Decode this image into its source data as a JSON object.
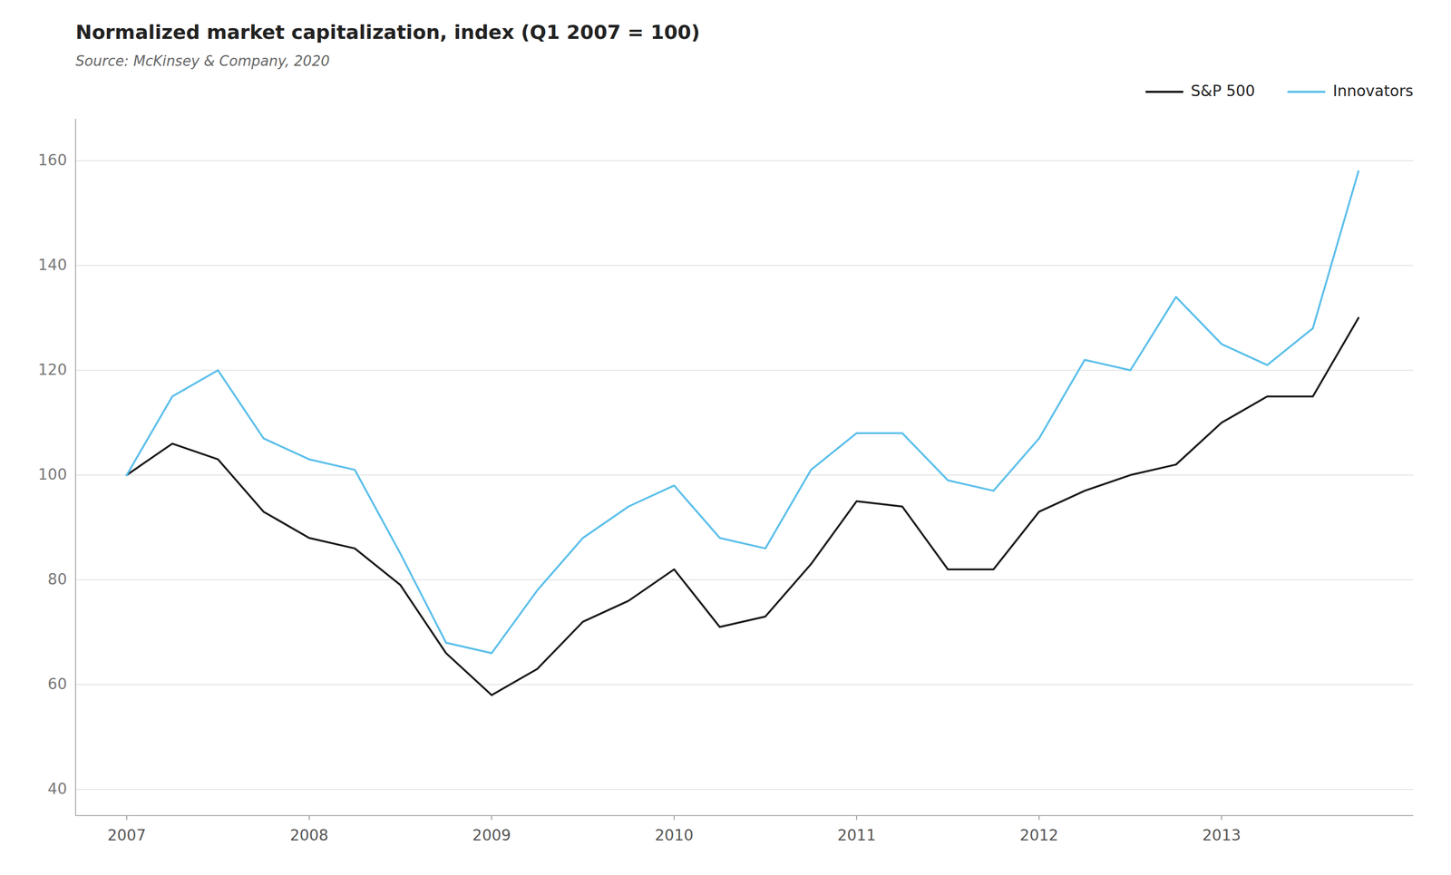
{
  "chart_data": {
    "type": "line",
    "title": "Normalized market capitalization, index (Q1 2007 = 100)",
    "subtitle": "Source: McKinsey & Company, 2020",
    "x": [
      2007.0,
      2007.25,
      2007.5,
      2007.75,
      2008.0,
      2008.25,
      2008.5,
      2008.75,
      2009.0,
      2009.25,
      2009.5,
      2009.75,
      2010.0,
      2010.25,
      2010.5,
      2010.75,
      2011.0,
      2011.25,
      2011.5,
      2011.75,
      2012.0,
      2012.25,
      2012.5,
      2012.75,
      2013.0,
      2013.25,
      2013.5,
      2013.75
    ],
    "series": [
      {
        "name": "S&P 500",
        "color": "#1a1a1a",
        "values": [
          100,
          106,
          103,
          93,
          88,
          86,
          79,
          66,
          58,
          63,
          72,
          76,
          82,
          71,
          73,
          83,
          95,
          94,
          82,
          82,
          93,
          97,
          100,
          102,
          110,
          115,
          115,
          130
        ]
      },
      {
        "name": "Innovators",
        "color": "#5bbfea",
        "values": [
          100,
          115,
          120,
          107,
          103,
          101,
          85,
          68,
          66,
          78,
          88,
          94,
          98,
          88,
          86,
          101,
          108,
          108,
          99,
          97,
          107,
          122,
          120,
          134,
          125,
          121,
          128,
          158
        ]
      }
    ],
    "xlim": [
      2006.72,
      2014.05
    ],
    "xticks": [
      2007,
      2008,
      2009,
      2010,
      2011,
      2012,
      2013
    ],
    "ylim": [
      35,
      168
    ],
    "yticks": [
      40,
      60,
      80,
      100,
      120,
      140,
      160
    ],
    "grid": true,
    "legend": "top"
  }
}
